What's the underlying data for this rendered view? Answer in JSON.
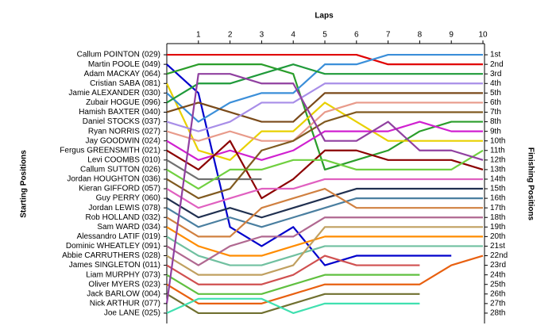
{
  "chart_data": {
    "type": "line",
    "x_label": "Laps",
    "y_label": "Starting Positions",
    "y2_label": "Finishing Positions",
    "x": [
      0,
      1,
      2,
      3,
      4,
      5,
      6,
      7,
      8,
      9,
      10
    ],
    "xlim": [
      0,
      10
    ],
    "xticks": [
      1,
      2,
      3,
      4,
      5,
      6,
      7,
      8,
      9,
      10
    ],
    "ylim": [
      29,
      0
    ],
    "y2lim": [
      29,
      0
    ],
    "y2ticks": [
      {
        "value": 1,
        "label": "1st"
      },
      {
        "value": 2,
        "label": "2nd"
      },
      {
        "value": 3,
        "label": "3rd"
      },
      {
        "value": 4,
        "label": "4th"
      },
      {
        "value": 5,
        "label": "5th"
      },
      {
        "value": 6,
        "label": "6th"
      },
      {
        "value": 7,
        "label": "7th"
      },
      {
        "value": 8,
        "label": "8th"
      },
      {
        "value": 9,
        "label": "9th"
      },
      {
        "value": 10,
        "label": "10th"
      },
      {
        "value": 11,
        "label": "11th"
      },
      {
        "value": 12,
        "label": "12th"
      },
      {
        "value": 13,
        "label": "13th"
      },
      {
        "value": 14,
        "label": "14th"
      },
      {
        "value": 15,
        "label": "15th"
      },
      {
        "value": 16,
        "label": "16th"
      },
      {
        "value": 17,
        "label": "17th"
      },
      {
        "value": 18,
        "label": "18th"
      },
      {
        "value": 19,
        "label": "19th"
      },
      {
        "value": 20,
        "label": "20th"
      },
      {
        "value": 21,
        "label": "21st"
      },
      {
        "value": 22,
        "label": "22nd"
      },
      {
        "value": 23,
        "label": "23rd"
      },
      {
        "value": 24,
        "label": "24th"
      },
      {
        "value": 25,
        "label": "25th"
      },
      {
        "value": 26,
        "label": "26th"
      },
      {
        "value": 27,
        "label": "27th"
      },
      {
        "value": 28,
        "label": "28th"
      }
    ],
    "series": [
      {
        "name": "Callum POINTON (029)",
        "color": "#e00000",
        "values": [
          1,
          1,
          1,
          1,
          1,
          1,
          1,
          2,
          2,
          2,
          2
        ]
      },
      {
        "name": "Martin POOLE (049)",
        "color": "#0000cc",
        "values": [
          2,
          5,
          19,
          21,
          19,
          23,
          22,
          22,
          22,
          22,
          null
        ]
      },
      {
        "name": "Adam MACKAY (064)",
        "color": "#2a9d2a",
        "values": [
          3,
          2,
          2,
          2,
          3,
          13,
          12,
          11,
          9,
          8,
          8
        ]
      },
      {
        "name": "Cristian SABA (081)",
        "color": "#e8d000",
        "values": [
          4,
          11,
          12,
          9,
          9,
          6,
          8,
          10,
          10,
          10,
          10
        ]
      },
      {
        "name": "Jamie ALEXANDER (030)",
        "color": "#3b8fd9",
        "values": [
          5,
          8,
          6,
          5,
          5,
          2,
          2,
          1,
          1,
          1,
          1
        ]
      },
      {
        "name": "Zubair HOGUE (096)",
        "color": "#1f9a3a",
        "values": [
          6,
          4,
          4,
          3,
          2,
          3,
          3,
          3,
          3,
          3,
          3
        ]
      },
      {
        "name": "Hamish BAXTER (040)",
        "color": "#7a4a1a",
        "values": [
          7,
          6,
          7,
          8,
          8,
          5,
          5,
          5,
          5,
          5,
          5
        ]
      },
      {
        "name": "Daniel STOCKS (037)",
        "color": "#a88ee8",
        "values": [
          8,
          9,
          8,
          6,
          6,
          4,
          4,
          4,
          4,
          4,
          4
        ]
      },
      {
        "name": "Ryan NORRIS (027)",
        "color": "#e89a8a",
        "values": [
          9,
          10,
          9,
          10,
          10,
          7,
          6,
          6,
          6,
          6,
          6
        ]
      },
      {
        "name": "Jay GOODWIN (024)",
        "color": "#d020d0",
        "values": [
          10,
          12,
          11,
          12,
          11,
          9,
          9,
          9,
          8,
          9,
          9
        ]
      },
      {
        "name": "Fergus GREENSMITH (021)",
        "color": "#8b0000",
        "values": [
          11,
          13,
          10,
          16,
          14,
          11,
          11,
          12,
          12,
          12,
          13
        ]
      },
      {
        "name": "Levi COOMBS (010)",
        "color": "#707070",
        "values": [
          12,
          14,
          14,
          14,
          null,
          null,
          null,
          null,
          null,
          null,
          null
        ]
      },
      {
        "name": "Callum SUTTON (026)",
        "color": "#70d040",
        "values": [
          13,
          15,
          13,
          13,
          12,
          12,
          13,
          13,
          13,
          13,
          11
        ]
      },
      {
        "name": "Jordan HOUGHTON (036)",
        "color": "#805a20",
        "values": [
          14,
          16,
          15,
          11,
          10,
          8,
          7,
          7,
          7,
          7,
          7
        ]
      },
      {
        "name": "Kieran GIFFORD (057)",
        "color": "#e060c0",
        "values": [
          15,
          17,
          16,
          15,
          15,
          14,
          14,
          14,
          14,
          14,
          14
        ]
      },
      {
        "name": "Guy PERRY (060)",
        "color": "#203050",
        "values": [
          16,
          18,
          17,
          18,
          17,
          16,
          15,
          15,
          15,
          15,
          15
        ]
      },
      {
        "name": "Jordan LEWIS (078)",
        "color": "#4a7fa0",
        "values": [
          17,
          19,
          18,
          19,
          18,
          17,
          16,
          16,
          16,
          16,
          16
        ]
      },
      {
        "name": "Rob HOLLAND (032)",
        "color": "#d08040",
        "values": [
          18,
          20,
          20,
          17,
          16,
          15,
          17,
          17,
          17,
          17,
          17
        ]
      },
      {
        "name": "Sam WARD (034)",
        "color": "#ff8c00",
        "values": [
          19,
          21,
          22,
          22,
          21,
          20,
          20,
          20,
          20,
          20,
          20
        ]
      },
      {
        "name": "Alessandro LATIF (019)",
        "color": "#70c0a0",
        "values": [
          20,
          22,
          23,
          23,
          22,
          21,
          21,
          21,
          21,
          21,
          21
        ]
      },
      {
        "name": "Dominic WHEATLEY (091)",
        "color": "#b06890",
        "values": [
          21,
          23,
          21,
          20,
          20,
          18,
          18,
          18,
          18,
          18,
          18
        ]
      },
      {
        "name": "Abbie CARRUTHERS (028)",
        "color": "#c0a060",
        "values": [
          22,
          24,
          24,
          24,
          23,
          19,
          19,
          19,
          19,
          19,
          19
        ]
      },
      {
        "name": "James SINGLETON (011)",
        "color": "#d05050",
        "values": [
          23,
          25,
          25,
          25,
          24,
          22,
          23,
          23,
          23,
          null,
          null
        ]
      },
      {
        "name": "Liam MURPHY (073)",
        "color": "#60c040",
        "values": [
          24,
          26,
          26,
          26,
          25,
          24,
          24,
          24,
          24,
          null,
          null
        ]
      },
      {
        "name": "Oliver MYERS (023)",
        "color": "#e86010",
        "values": [
          25,
          27,
          27,
          27,
          26,
          25,
          25,
          25,
          25,
          23,
          22
        ]
      },
      {
        "name": "Jack BARLOW (004)",
        "color": "#707030",
        "values": [
          26,
          28,
          28,
          28,
          27,
          26,
          26,
          26,
          26,
          null,
          null
        ]
      },
      {
        "name": "Nick ARTHUR (077)",
        "color": "#9040a0",
        "values": [
          27,
          3,
          3,
          4,
          4,
          10,
          10,
          8,
          11,
          11,
          12
        ]
      },
      {
        "name": "Joe LANE (025)",
        "color": "#40e0b0",
        "values": [
          28,
          26.5,
          26.5,
          26.5,
          28,
          27,
          27,
          27,
          27,
          null,
          null
        ]
      }
    ]
  }
}
